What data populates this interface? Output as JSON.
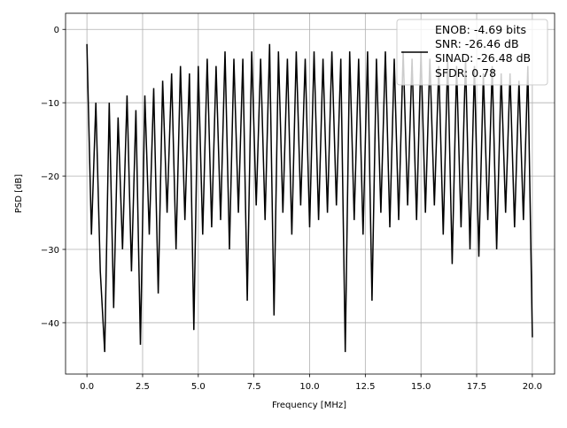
{
  "chart_data": {
    "type": "line",
    "title": "",
    "xlabel": "Frequency [MHz]",
    "ylabel": "PSD [dB]",
    "xlim": [
      -0.96,
      21.0
    ],
    "ylim": [
      -47.0,
      2.2
    ],
    "xticks": [
      0,
      2.5,
      5,
      7.5,
      10,
      12.5,
      15,
      17.5,
      20
    ],
    "xtick_labels": [
      "0.0",
      "2.5",
      "5.0",
      "7.5",
      "10.0",
      "12.5",
      "15.0",
      "17.5",
      "20.0"
    ],
    "yticks": [
      0,
      -10,
      -20,
      -30,
      -40
    ],
    "ytick_labels": [
      "0",
      "−10",
      "−20",
      "−30",
      "−40"
    ],
    "grid": true,
    "legend_placement": "upper-right",
    "legend_lines": [
      "ENOB: -4.69 bits",
      "SNR: -26.46 dB",
      "SINAD: -26.48 dB",
      "SFDR: 0.78"
    ],
    "series": [
      {
        "color": "#000000",
        "x": [
          0,
          0.2,
          0.4,
          0.6,
          0.8,
          1,
          1.2,
          1.4,
          1.6,
          1.8,
          2,
          2.2,
          2.4,
          2.6,
          2.8,
          3,
          3.2,
          3.4,
          3.6,
          3.8,
          4,
          4.2,
          4.4,
          4.6,
          4.8,
          5,
          5.2,
          5.4,
          5.6,
          5.8,
          6,
          6.2,
          6.4,
          6.6,
          6.8,
          7,
          7.2,
          7.4,
          7.6,
          7.8,
          8,
          8.2,
          8.4,
          8.6,
          8.8,
          9,
          9.2,
          9.4,
          9.6,
          9.8,
          10,
          10.2,
          10.4,
          10.6,
          10.8,
          11,
          11.2,
          11.4,
          11.6,
          11.8,
          12,
          12.2,
          12.4,
          12.6,
          12.8,
          13,
          13.2,
          13.4,
          13.6,
          13.8,
          14,
          14.2,
          14.4,
          14.6,
          14.8,
          15,
          15.2,
          15.4,
          15.6,
          15.8,
          16,
          16.2,
          16.4,
          16.6,
          16.8,
          17,
          17.2,
          17.4,
          17.6,
          17.8,
          18,
          18.2,
          18.4,
          18.6,
          18.8,
          19,
          19.2,
          19.4,
          19.6,
          19.8,
          20
        ],
        "y": [
          -2,
          -28,
          -10,
          -33,
          -44,
          -10,
          -38,
          -12,
          -30,
          -9,
          -33,
          -11,
          -43,
          -9,
          -28,
          -8,
          -36,
          -7,
          -25,
          -6,
          -30,
          -5,
          -26,
          -6,
          -41,
          -5,
          -28,
          -4,
          -27,
          -5,
          -26,
          -3,
          -30,
          -4,
          -25,
          -4,
          -37,
          -3,
          -24,
          -4,
          -26,
          -2,
          -39,
          -3,
          -25,
          -4,
          -28,
          -3,
          -24,
          -4,
          -27,
          -3,
          -26,
          -4,
          -25,
          -3,
          -24,
          -4,
          -44,
          -3,
          -26,
          -4,
          -28,
          -3,
          -37,
          -4,
          -25,
          -3,
          -27,
          -4,
          -26,
          -3,
          -24,
          -4,
          -26,
          -3,
          -25,
          -4,
          -24,
          -5,
          -28,
          -4,
          -32,
          -5,
          -27,
          -4,
          -30,
          -5,
          -31,
          -6,
          -26,
          -5,
          -30,
          -6,
          -25,
          -6,
          -27,
          -7,
          -26,
          -5,
          -42
        ]
      }
    ]
  }
}
